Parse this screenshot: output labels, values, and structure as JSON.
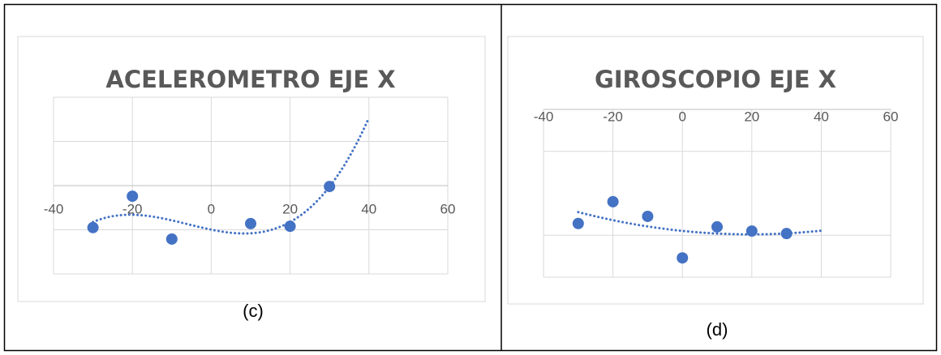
{
  "chart_data": [
    {
      "type": "scatter",
      "title": "ACELEROMETRO EJE X",
      "caption": "(c)",
      "color": "#4472c4",
      "x": [
        -30,
        -20,
        -10,
        10,
        20,
        30
      ],
      "values": [
        -0.95,
        -0.24,
        -1.21,
        -0.86,
        -0.92,
        -0.02
      ],
      "xlim": [
        -40,
        60
      ],
      "xticks": [
        -40,
        -20,
        0,
        20,
        40,
        60
      ],
      "ylim": [
        -2,
        2
      ],
      "ygrid": [
        -2,
        -1,
        0,
        1,
        2
      ],
      "grid": true,
      "trendline": {
        "type": "polynomial",
        "order": 3,
        "xlim": [
          -30,
          40
        ]
      }
    },
    {
      "type": "scatter",
      "title": "GIROSCOPIO EJE X",
      "caption": "(d)",
      "color": "#4472c4",
      "x": [
        -30,
        -20,
        -10,
        0,
        10,
        20,
        30
      ],
      "values": [
        -2.72,
        -2.2,
        -2.55,
        -3.54,
        -2.8,
        -2.9,
        -2.96
      ],
      "xlim": [
        -40,
        60
      ],
      "xticks": [
        -40,
        -20,
        0,
        20,
        40,
        60
      ],
      "ylim": [
        -4,
        0
      ],
      "ygrid": [
        -1,
        -3,
        -4
      ],
      "grid": true,
      "trendline": {
        "type": "polynomial",
        "order": 2,
        "xlim": [
          -30,
          40
        ]
      }
    }
  ]
}
